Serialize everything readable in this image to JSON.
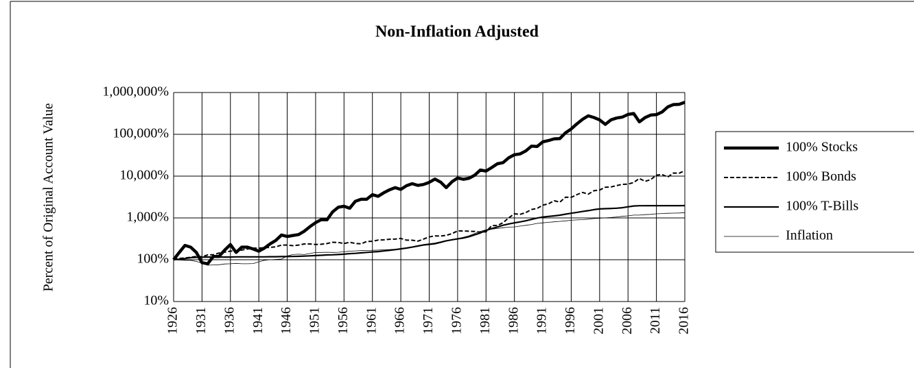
{
  "chart_data": {
    "type": "line",
    "title": "Non-Inflation Adjusted",
    "y_label": "Percent of Original Account Value",
    "yscale": "log",
    "grid": true,
    "legend": "right",
    "xlim": [
      1926,
      2016
    ],
    "xticks": [
      1926,
      1931,
      1936,
      1941,
      1946,
      1951,
      1956,
      1961,
      1966,
      1971,
      1976,
      1981,
      1986,
      1991,
      1996,
      2001,
      2006,
      2011,
      2016
    ],
    "ylim": [
      10,
      1000000
    ],
    "yticks": [
      {
        "value": 10,
        "label": "10%"
      },
      {
        "value": 100,
        "label": "100%"
      },
      {
        "value": 1000,
        "label": "1,000%"
      },
      {
        "value": 10000,
        "label": "10,000%"
      },
      {
        "value": 100000,
        "label": "100,000%"
      },
      {
        "value": 1000000,
        "label": "1,000,000%"
      }
    ],
    "x": [
      1926,
      1927,
      1928,
      1929,
      1930,
      1931,
      1932,
      1933,
      1934,
      1935,
      1936,
      1937,
      1938,
      1939,
      1940,
      1941,
      1942,
      1943,
      1944,
      1945,
      1946,
      1947,
      1948,
      1949,
      1950,
      1951,
      1952,
      1953,
      1954,
      1955,
      1956,
      1957,
      1958,
      1959,
      1960,
      1961,
      1962,
      1963,
      1964,
      1965,
      1966,
      1967,
      1968,
      1969,
      1970,
      1971,
      1972,
      1973,
      1974,
      1975,
      1976,
      1977,
      1978,
      1979,
      1980,
      1981,
      1982,
      1983,
      1984,
      1985,
      1986,
      1987,
      1988,
      1989,
      1990,
      1991,
      1992,
      1993,
      1994,
      1995,
      1996,
      1997,
      1998,
      1999,
      2000,
      2001,
      2002,
      2003,
      2004,
      2005,
      2006,
      2007,
      2008,
      2009,
      2010,
      2011,
      2012,
      2013,
      2014,
      2015,
      2016
    ],
    "series": [
      {
        "name": "100% Stocks",
        "color": "#000000",
        "values": [
          100,
          150,
          220,
          200,
          150,
          85,
          80,
          120,
          120,
          170,
          230,
          150,
          200,
          200,
          180,
          160,
          190,
          240,
          290,
          390,
          360,
          380,
          400,
          480,
          620,
          770,
          910,
          900,
          1400,
          1800,
          1900,
          1700,
          2500,
          2800,
          2800,
          3600,
          3300,
          4000,
          4700,
          5300,
          4800,
          5900,
          6600,
          6000,
          6300,
          7100,
          8500,
          7200,
          5300,
          7300,
          9000,
          8400,
          8900,
          10500,
          14000,
          13200,
          16000,
          19700,
          21000,
          27500,
          32500,
          34000,
          40000,
          52000,
          51000,
          66000,
          71000,
          78000,
          79000,
          109000,
          134000,
          178000,
          229000,
          277000,
          252000,
          222000,
          173000,
          222000,
          246000,
          258000,
          299000,
          315000,
          199000,
          251000,
          289000,
          295000,
          342000,
          453000,
          515000,
          522000,
          585000
        ]
      },
      {
        "name": "100% Bonds",
        "color": "#000000",
        "values": [
          100,
          108,
          110,
          115,
          120,
          118,
          130,
          131,
          145,
          152,
          161,
          161,
          170,
          180,
          190,
          189,
          194,
          197,
          203,
          224,
          224,
          217,
          224,
          238,
          238,
          232,
          235,
          244,
          262,
          259,
          244,
          262,
          246,
          240,
          273,
          276,
          295,
          299,
          309,
          312,
          323,
          294,
          293,
          278,
          311,
          352,
          372,
          368,
          384,
          420,
          490,
          487,
          481,
          475,
          456,
          465,
          654,
          658,
          768,
          1005,
          1252,
          1219,
          1342,
          1589,
          1688,
          2015,
          2180,
          2582,
          2385,
          3140,
          3108,
          3603,
          4073,
          3703,
          4476,
          4642,
          5419,
          5500,
          5936,
          6351,
          6427,
          7053,
          8756,
          7505,
          8259,
          10547,
          10906,
          9526,
          11854,
          11708,
          13500
        ]
      },
      {
        "name": "100% T-Bills",
        "color": "#000000",
        "values": [
          100,
          103,
          107,
          112,
          114,
          115,
          116,
          116,
          116,
          116,
          116,
          117,
          117,
          117,
          117,
          117,
          117,
          118,
          118,
          119,
          119,
          120,
          121,
          122,
          124,
          126,
          128,
          130,
          131,
          133,
          136,
          140,
          142,
          146,
          150,
          153,
          157,
          162,
          168,
          174,
          182,
          190,
          200,
          213,
          226,
          236,
          245,
          262,
          283,
          300,
          315,
          331,
          355,
          393,
          438,
          503,
          556,
          605,
          667,
          718,
          762,
          802,
          853,
          922,
          994,
          1050,
          1087,
          1119,
          1163,
          1229,
          1293,
          1360,
          1426,
          1494,
          1580,
          1640,
          1667,
          1684,
          1706,
          1758,
          1842,
          1928,
          1956,
          1959,
          1962,
          1963,
          1965,
          1966,
          1967,
          1968,
          1974
        ]
      },
      {
        "name": "Inflation",
        "color": "#000000",
        "values": [
          100,
          98,
          97,
          97,
          91,
          83,
          74,
          75,
          76,
          79,
          80,
          82,
          80,
          80,
          81,
          89,
          97,
          100,
          102,
          104,
          123,
          133,
          136,
          133,
          141,
          149,
          150,
          151,
          150,
          151,
          155,
          160,
          163,
          165,
          167,
          168,
          170,
          173,
          175,
          178,
          184,
          189,
          198,
          209,
          220,
          227,
          235,
          255,
          286,
          306,
          321,
          343,
          374,
          424,
          477,
          519,
          539,
          560,
          582,
          604,
          611,
          638,
          666,
          697,
          740,
          763,
          786,
          807,
          829,
          850,
          879,
          895,
          909,
          933,
          965,
          980,
          1004,
          1023,
          1056,
          1092,
          1120,
          1166,
          1166,
          1198,
          1216,
          1252,
          1273,
          1292,
          1302,
          1311,
          1338
        ]
      }
    ]
  }
}
